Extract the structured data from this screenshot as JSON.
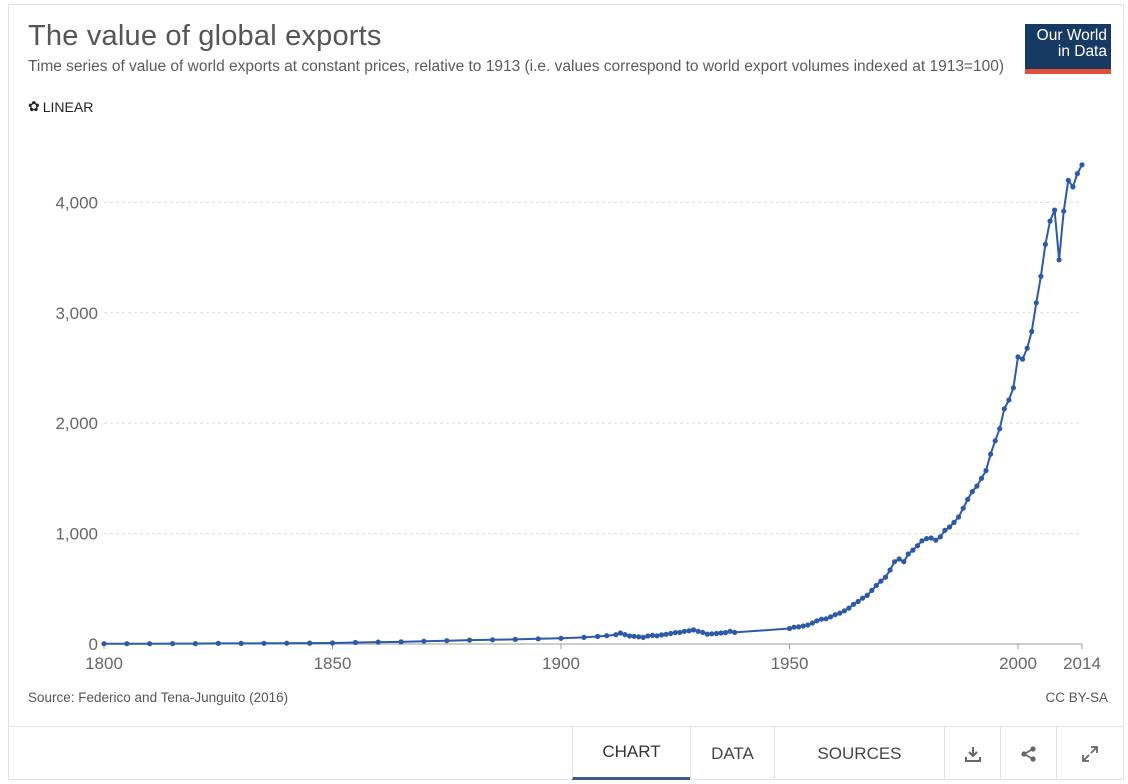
{
  "header": {
    "title": "The value of global exports",
    "subtitle": "Time series of value of world exports at constant prices, relative to 1913 (i.e. values correspond to world export volumes indexed at 1913=100)",
    "scale_toggle_label": "LINEAR",
    "logo_line1": "Our World",
    "logo_line2": "in Data"
  },
  "footer": {
    "source": "Source: Federico and Tena-Junguito (2016)",
    "license": "CC BY-SA",
    "tabs": [
      {
        "label": "CHART",
        "active": true
      },
      {
        "label": "DATA",
        "active": false
      },
      {
        "label": "SOURCES",
        "active": false
      }
    ],
    "icons": [
      "download-icon",
      "share-icon",
      "expand-icon"
    ]
  },
  "colors": {
    "series": "#2c5aa8",
    "logo_bg": "#173a63",
    "logo_accent": "#e14e3a",
    "active_tab": "#3b5a8a"
  },
  "chart_data": {
    "type": "line",
    "title": "The value of global exports",
    "xlabel": "",
    "ylabel": "",
    "xlim": [
      1800,
      2014
    ],
    "ylim": [
      0,
      4800
    ],
    "x_ticks": [
      1800,
      1850,
      1900,
      1950,
      2000,
      2014
    ],
    "y_ticks": [
      0,
      1000,
      2000,
      3000,
      4000
    ],
    "y_tick_labels": [
      "0",
      "1,000",
      "2,000",
      "3,000",
      "4,000"
    ],
    "grid": "horizontal-dashed",
    "markers": true,
    "series": [
      {
        "name": "",
        "points": [
          [
            1800,
            3
          ],
          [
            1805,
            3
          ],
          [
            1810,
            3
          ],
          [
            1815,
            4
          ],
          [
            1820,
            4
          ],
          [
            1825,
            5
          ],
          [
            1830,
            5
          ],
          [
            1835,
            6
          ],
          [
            1840,
            7
          ],
          [
            1845,
            8
          ],
          [
            1850,
            9
          ],
          [
            1855,
            14
          ],
          [
            1860,
            17
          ],
          [
            1865,
            19
          ],
          [
            1870,
            25
          ],
          [
            1875,
            30
          ],
          [
            1880,
            35
          ],
          [
            1885,
            38
          ],
          [
            1890,
            42
          ],
          [
            1895,
            47
          ],
          [
            1900,
            52
          ],
          [
            1905,
            60
          ],
          [
            1908,
            68
          ],
          [
            1910,
            75
          ],
          [
            1912,
            84
          ],
          [
            1913,
            100
          ],
          [
            1914,
            85
          ],
          [
            1915,
            72
          ],
          [
            1916,
            70
          ],
          [
            1917,
            65
          ],
          [
            1918,
            60
          ],
          [
            1919,
            72
          ],
          [
            1920,
            78
          ],
          [
            1921,
            74
          ],
          [
            1922,
            82
          ],
          [
            1923,
            88
          ],
          [
            1924,
            95
          ],
          [
            1925,
            103
          ],
          [
            1926,
            105
          ],
          [
            1927,
            115
          ],
          [
            1928,
            120
          ],
          [
            1929,
            128
          ],
          [
            1930,
            115
          ],
          [
            1931,
            105
          ],
          [
            1932,
            90
          ],
          [
            1933,
            92
          ],
          [
            1934,
            95
          ],
          [
            1935,
            100
          ],
          [
            1936,
            103
          ],
          [
            1937,
            115
          ],
          [
            1938,
            105
          ],
          [
            1950,
            140
          ],
          [
            1951,
            152
          ],
          [
            1952,
            155
          ],
          [
            1953,
            163
          ],
          [
            1954,
            172
          ],
          [
            1955,
            190
          ],
          [
            1956,
            210
          ],
          [
            1957,
            225
          ],
          [
            1958,
            228
          ],
          [
            1959,
            245
          ],
          [
            1960,
            265
          ],
          [
            1961,
            280
          ],
          [
            1962,
            300
          ],
          [
            1963,
            325
          ],
          [
            1964,
            360
          ],
          [
            1965,
            385
          ],
          [
            1966,
            415
          ],
          [
            1967,
            440
          ],
          [
            1968,
            485
          ],
          [
            1969,
            530
          ],
          [
            1970,
            570
          ],
          [
            1971,
            605
          ],
          [
            1972,
            670
          ],
          [
            1973,
            745
          ],
          [
            1974,
            770
          ],
          [
            1975,
            745
          ],
          [
            1976,
            815
          ],
          [
            1977,
            850
          ],
          [
            1978,
            890
          ],
          [
            1979,
            935
          ],
          [
            1980,
            955
          ],
          [
            1981,
            960
          ],
          [
            1982,
            940
          ],
          [
            1983,
            970
          ],
          [
            1984,
            1030
          ],
          [
            1985,
            1060
          ],
          [
            1986,
            1100
          ],
          [
            1987,
            1150
          ],
          [
            1988,
            1230
          ],
          [
            1989,
            1310
          ],
          [
            1990,
            1380
          ],
          [
            1991,
            1430
          ],
          [
            1992,
            1500
          ],
          [
            1993,
            1570
          ],
          [
            1994,
            1720
          ],
          [
            1995,
            1840
          ],
          [
            1996,
            1950
          ],
          [
            1997,
            2130
          ],
          [
            1998,
            2210
          ],
          [
            1999,
            2320
          ],
          [
            2000,
            2600
          ],
          [
            2001,
            2580
          ],
          [
            2002,
            2680
          ],
          [
            2003,
            2830
          ],
          [
            2004,
            3090
          ],
          [
            2005,
            3330
          ],
          [
            2006,
            3620
          ],
          [
            2007,
            3830
          ],
          [
            2008,
            3930
          ],
          [
            2009,
            3480
          ],
          [
            2010,
            3920
          ],
          [
            2011,
            4200
          ],
          [
            2012,
            4140
          ],
          [
            2013,
            4260
          ],
          [
            2014,
            4340
          ]
        ]
      }
    ]
  }
}
